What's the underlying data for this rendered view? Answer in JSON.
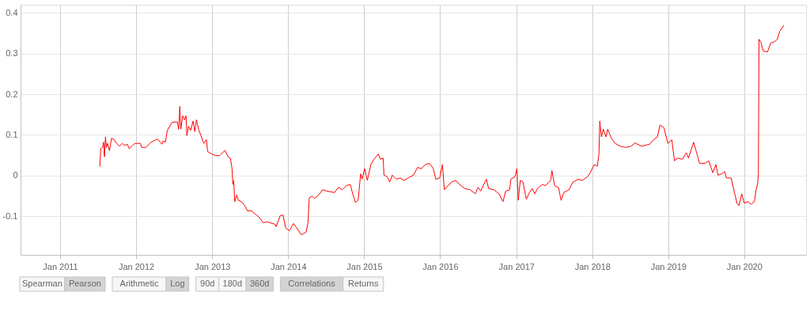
{
  "chart_data": {
    "type": "line",
    "x": [
      "2011-07-11",
      "2011-07-15",
      "2011-07-24",
      "2011-07-29",
      "2011-08-02",
      "2011-08-07",
      "2011-08-11",
      "2011-08-17",
      "2011-08-26",
      "2011-09-05",
      "2011-09-18",
      "2011-09-30",
      "2011-10-13",
      "2011-10-26",
      "2011-11-07",
      "2011-11-20",
      "2011-11-29",
      "2011-12-15",
      "2011-12-28",
      "2012-01-22",
      "2012-01-28",
      "2012-02-16",
      "2012-03-13",
      "2012-04-13",
      "2012-04-26",
      "2012-05-05",
      "2012-05-09",
      "2012-05-21",
      "2012-05-30",
      "2012-06-22",
      "2012-07-17",
      "2012-07-24",
      "2012-07-29",
      "2012-08-03",
      "2012-08-12",
      "2012-08-21",
      "2012-08-28",
      "2012-09-01",
      "2012-09-09",
      "2012-09-19",
      "2012-10-01",
      "2012-10-09",
      "2012-10-17",
      "2012-10-29",
      "2012-11-08",
      "2012-11-21",
      "2012-12-04",
      "2012-12-10",
      "2012-12-29",
      "2013-01-18",
      "2013-02-06",
      "2013-03-03",
      "2013-03-18",
      "2013-03-29",
      "2013-04-06",
      "2013-04-10",
      "2013-04-14",
      "2013-04-19",
      "2013-04-29",
      "2013-05-06",
      "2013-05-21",
      "2013-06-06",
      "2013-06-19",
      "2013-07-08",
      "2013-07-27",
      "2013-08-15",
      "2013-09-03",
      "2013-09-22",
      "2013-10-05",
      "2013-10-30",
      "2013-11-04",
      "2013-11-23",
      "2013-12-07",
      "2013-12-20",
      "2014-01-07",
      "2014-01-26",
      "2014-02-07",
      "2014-03-05",
      "2014-03-28",
      "2014-04-06",
      "2014-04-12",
      "2014-04-25",
      "2014-05-08",
      "2014-05-27",
      "2014-06-15",
      "2014-07-04",
      "2014-08-11",
      "2014-08-30",
      "2014-09-18",
      "2014-10-07",
      "2014-10-26",
      "2014-11-07",
      "2014-11-20",
      "2014-12-03",
      "2014-12-15",
      "2014-12-22",
      "2015-01-03",
      "2015-01-16",
      "2015-02-02",
      "2015-02-17",
      "2015-03-10",
      "2015-03-20",
      "2015-04-02",
      "2015-04-06",
      "2015-04-21",
      "2015-05-04",
      "2015-05-16",
      "2015-06-04",
      "2015-06-23",
      "2015-07-12",
      "2015-08-07",
      "2015-08-26",
      "2015-09-14",
      "2015-10-03",
      "2015-10-22",
      "2015-11-10",
      "2015-11-29",
      "2015-12-11",
      "2015-12-30",
      "2016-01-12",
      "2016-01-21",
      "2016-01-31",
      "2016-02-25",
      "2016-03-15",
      "2016-04-03",
      "2016-04-29",
      "2016-05-24",
      "2016-06-18",
      "2016-07-01",
      "2016-07-14",
      "2016-08-10",
      "2016-08-21",
      "2016-09-15",
      "2016-10-10",
      "2016-10-29",
      "2016-11-11",
      "2016-11-30",
      "2016-12-06",
      "2016-12-25",
      "2017-01-04",
      "2017-01-10",
      "2017-01-20",
      "2017-02-02",
      "2017-02-18",
      "2017-03-05",
      "2017-03-18",
      "2017-03-31",
      "2017-04-12",
      "2017-04-19",
      "2017-05-08",
      "2017-05-20",
      "2017-06-15",
      "2017-06-21",
      "2017-07-04",
      "2017-07-23",
      "2017-08-04",
      "2017-08-17",
      "2017-09-11",
      "2017-09-30",
      "2017-10-26",
      "2017-11-14",
      "2017-12-09",
      "2017-12-22",
      "2018-01-10",
      "2018-01-25",
      "2018-02-02",
      "2018-02-06",
      "2018-02-14",
      "2018-02-23",
      "2018-03-08",
      "2018-03-16",
      "2018-04-02",
      "2018-04-21",
      "2018-05-16",
      "2018-06-11",
      "2018-07-06",
      "2018-07-25",
      "2018-08-26",
      "2018-10-03",
      "2018-10-22",
      "2018-11-10",
      "2018-11-22",
      "2018-12-11",
      "2018-12-30",
      "2019-01-18",
      "2019-01-31",
      "2019-02-13",
      "2019-03-10",
      "2019-03-29",
      "2019-04-08",
      "2019-05-03",
      "2019-05-19",
      "2019-05-31",
      "2019-06-26",
      "2019-07-15",
      "2019-08-03",
      "2019-08-18",
      "2019-08-28",
      "2019-09-16",
      "2019-09-29",
      "2019-10-07",
      "2019-10-30",
      "2019-11-18",
      "2019-11-27",
      "2019-12-07",
      "2019-12-20",
      "2020-01-01",
      "2020-01-20",
      "2020-02-02",
      "2020-02-19",
      "2020-02-27",
      "2020-03-05",
      "2020-03-09",
      "2020-03-12",
      "2020-03-20",
      "2020-04-02",
      "2020-04-22",
      "2020-05-07",
      "2020-05-26",
      "2020-06-08",
      "2020-06-20",
      "2020-07-09"
    ],
    "series": [
      {
        "color": "#ff0000",
        "values": [
          0.023,
          0.066,
          0.069,
          0.082,
          0.046,
          0.095,
          0.069,
          0.079,
          0.061,
          0.092,
          0.088,
          0.079,
          0.072,
          0.079,
          0.074,
          0.077,
          0.066,
          0.074,
          0.079,
          0.079,
          0.069,
          0.069,
          0.082,
          0.09,
          0.082,
          0.077,
          0.085,
          0.082,
          0.111,
          0.131,
          0.132,
          0.114,
          0.17,
          0.114,
          0.147,
          0.137,
          0.147,
          0.098,
          0.121,
          0.111,
          0.134,
          0.108,
          0.137,
          0.111,
          0.098,
          0.079,
          0.088,
          0.059,
          0.053,
          0.049,
          0.049,
          0.062,
          0.046,
          0.043,
          0.017,
          -0.022,
          -0.012,
          -0.064,
          -0.048,
          -0.061,
          -0.064,
          -0.074,
          -0.087,
          -0.087,
          -0.095,
          -0.103,
          -0.116,
          -0.114,
          -0.116,
          -0.12,
          -0.126,
          -0.099,
          -0.097,
          -0.129,
          -0.136,
          -0.118,
          -0.126,
          -0.146,
          -0.139,
          -0.116,
          -0.055,
          -0.051,
          -0.056,
          -0.048,
          -0.035,
          -0.038,
          -0.042,
          -0.029,
          -0.035,
          -0.025,
          -0.022,
          -0.045,
          -0.066,
          -0.061,
          0.004,
          -0.009,
          0.017,
          -0.012,
          0.027,
          0.04,
          0.053,
          0.04,
          0.043,
          0.001,
          -0.003,
          -0.016,
          0.001,
          -0.009,
          -0.006,
          -0.012,
          -0.004,
          0.001,
          0.02,
          0.017,
          0.027,
          0.03,
          0.017,
          -0.009,
          -0.006,
          0.027,
          -0.035,
          -0.029,
          -0.016,
          -0.012,
          -0.022,
          -0.032,
          -0.035,
          -0.045,
          -0.029,
          -0.038,
          -0.009,
          -0.032,
          -0.035,
          -0.045,
          -0.064,
          -0.038,
          -0.035,
          -0.009,
          -0.003,
          0.017,
          -0.061,
          -0.012,
          -0.016,
          -0.058,
          -0.042,
          -0.032,
          -0.045,
          -0.032,
          -0.029,
          -0.022,
          -0.025,
          -0.012,
          0.012,
          -0.025,
          -0.03,
          -0.061,
          -0.042,
          -0.035,
          -0.016,
          -0.009,
          -0.012,
          -0.003,
          0.007,
          0.027,
          0.023,
          0.053,
          0.134,
          0.095,
          0.114,
          0.095,
          0.114,
          0.092,
          0.079,
          0.072,
          0.069,
          0.072,
          0.08,
          0.072,
          0.077,
          0.088,
          0.095,
          0.124,
          0.118,
          0.079,
          0.088,
          0.036,
          0.043,
          0.04,
          0.056,
          0.043,
          0.082,
          0.053,
          0.03,
          0.03,
          0.036,
          0.007,
          0.027,
          0.001,
          0.004,
          0.01,
          -0.006,
          -0.006,
          -0.048,
          -0.068,
          -0.074,
          -0.045,
          -0.068,
          -0.064,
          -0.071,
          -0.064,
          -0.035,
          -0.022,
          0.004,
          0.335,
          0.329,
          0.306,
          0.304,
          0.326,
          0.329,
          0.335,
          0.355,
          0.369
        ]
      }
    ],
    "xlim": [
      "2010-06-25",
      "2020-10-24"
    ],
    "xticks": [
      {
        "value": "2011-01-01",
        "label": "Jan 2011"
      },
      {
        "value": "2012-01-01",
        "label": "Jan 2012"
      },
      {
        "value": "2013-01-01",
        "label": "Jan 2013"
      },
      {
        "value": "2014-01-01",
        "label": "Jan 2014"
      },
      {
        "value": "2015-01-01",
        "label": "Jan 2015"
      },
      {
        "value": "2016-01-01",
        "label": "Jan 2016"
      },
      {
        "value": "2017-01-01",
        "label": "Jan 2017"
      },
      {
        "value": "2018-01-01",
        "label": "Jan 2018"
      },
      {
        "value": "2019-01-01",
        "label": "Jan 2019"
      },
      {
        "value": "2020-01-01",
        "label": "Jan 2020"
      }
    ],
    "ylim": [
      -0.195,
      0.42
    ],
    "yticks": [
      -0.1,
      0,
      0.1,
      0.2,
      0.3,
      0.4
    ],
    "grid": true,
    "annotations": [
      "Spearman",
      "Pearson",
      "Arithmetic",
      "Log",
      "90d",
      "180d",
      "360d",
      "Correlations",
      "Returns"
    ]
  }
}
